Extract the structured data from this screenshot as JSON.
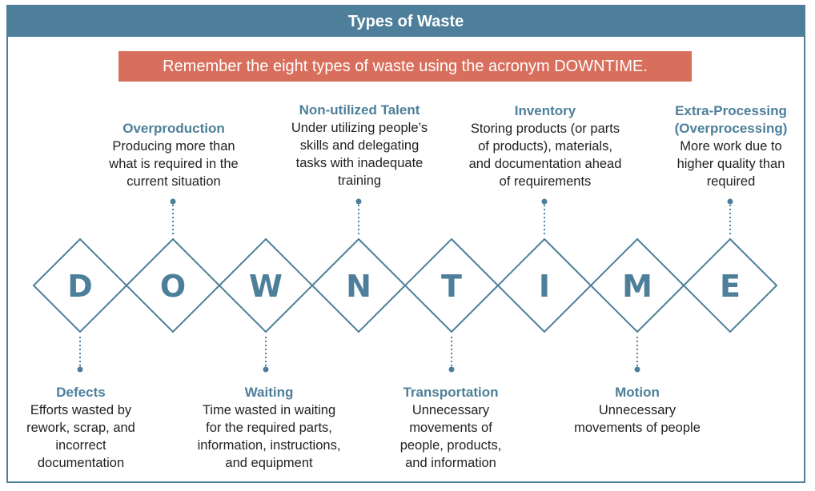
{
  "header": {
    "title": "Types of Waste"
  },
  "banner": {
    "text": "Remember the eight types of waste using the acronym DOWNTIME."
  },
  "colors": {
    "primary": "#4d7f9a",
    "banner": "#d86f5d"
  },
  "letters": [
    "D",
    "O",
    "W",
    "N",
    "T",
    "I",
    "M",
    "E"
  ],
  "items": [
    {
      "letter": "D",
      "title": "Defects",
      "desc": "Efforts wasted by\nrework, scrap, and\nincorrect\ndocumentation"
    },
    {
      "letter": "O",
      "title": "Overproduction",
      "desc": "Producing more than\nwhat is required in the\ncurrent situation"
    },
    {
      "letter": "W",
      "title": "Waiting",
      "desc": "Time wasted in waiting\nfor the required parts,\ninformation, instructions,\nand equipment"
    },
    {
      "letter": "N",
      "title": "Non-utilized Talent",
      "desc": "Under utilizing people’s\nskills and delegating\ntasks with inadequate\ntraining"
    },
    {
      "letter": "T",
      "title": "Transportation",
      "desc": "Unnecessary\nmovements of\npeople, products,\nand information"
    },
    {
      "letter": "I",
      "title": "Inventory",
      "desc": "Storing products (or parts\nof products), materials,\nand documentation ahead\nof requirements"
    },
    {
      "letter": "M",
      "title": "Motion",
      "desc": "Unnecessary\nmovements of people"
    },
    {
      "letter": "E",
      "title": "Extra-Processing\n(Overprocessing)",
      "desc": "More work due to\nhigher quality than\nrequired"
    }
  ]
}
